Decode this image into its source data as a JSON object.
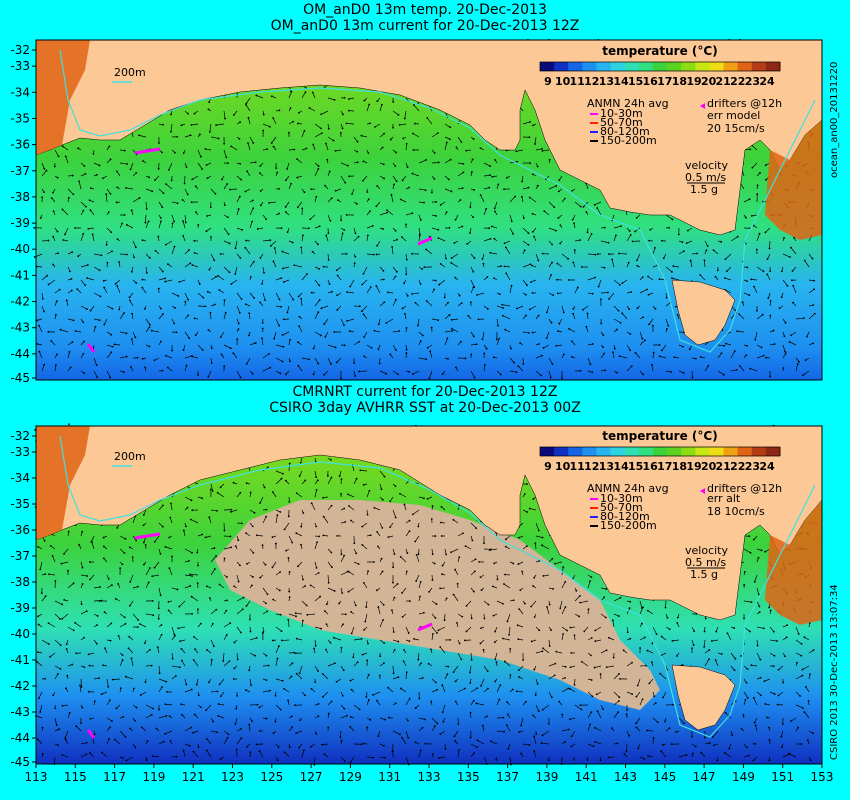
{
  "top": {
    "title_line1": "OM_anD0 13m temp. 20-Dec-2013",
    "title_line2": "OM_anD0 13m current for 20-Dec-2013 12Z",
    "side_label": "ocean_an00_20131220",
    "err_label": "err model",
    "err_value": "20 15cm/s"
  },
  "bottom": {
    "title_line1": "CMRNRT current for 20-Dec-2013 12Z",
    "title_line2": "CSIRO 3day AVHRR SST at 20-Dec-2013 00Z",
    "side_label": "CSIRO 2013  30-Dec-2013 13:07:34",
    "err_label": "err alt",
    "err_value": "18 10cm/s"
  },
  "legend": {
    "title": "temperature (°C)",
    "ticks": [
      "9",
      "10",
      "11",
      "12",
      "13",
      "14",
      "15",
      "16",
      "17",
      "18",
      "19",
      "20",
      "21",
      "22",
      "23",
      "24"
    ],
    "colors": [
      "#0a0a7a",
      "#1030c0",
      "#1466e6",
      "#1e90f0",
      "#28b4f0",
      "#2ed2e0",
      "#2ee0b4",
      "#30e080",
      "#3cd23c",
      "#5ad21e",
      "#8cdc14",
      "#c8e614",
      "#f0dc14",
      "#f0a014",
      "#e06414",
      "#b43c14",
      "#8c2814"
    ],
    "anmn_title": "ANMN 24h avg",
    "depth_labels": [
      "10-30m",
      "50-70m",
      "80-120m",
      "150-200m"
    ],
    "depth_colors": [
      "#ff00ff",
      "#ff2000",
      "#2020ff",
      "#000000"
    ],
    "drifters": "drifters @12h",
    "velocity": "velocity",
    "velocity_scale": "0.5 m/s",
    "velocity_sub": "1.5 g",
    "isobath": "200m"
  },
  "map": {
    "y_ticks": [
      "-32",
      "-33",
      "-34",
      "-35",
      "-36",
      "-37",
      "-38",
      "-39",
      "-40",
      "-41",
      "-42",
      "-43",
      "-44",
      "-45"
    ],
    "x_ticks": [
      "113",
      "115",
      "117",
      "119",
      "121",
      "123",
      "125",
      "127",
      "129",
      "131",
      "133",
      "135",
      "137",
      "139",
      "141",
      "143",
      "145",
      "147",
      "149",
      "151",
      "153"
    ],
    "land_color": "#fcc896",
    "nodata_color": "#d2b496"
  }
}
